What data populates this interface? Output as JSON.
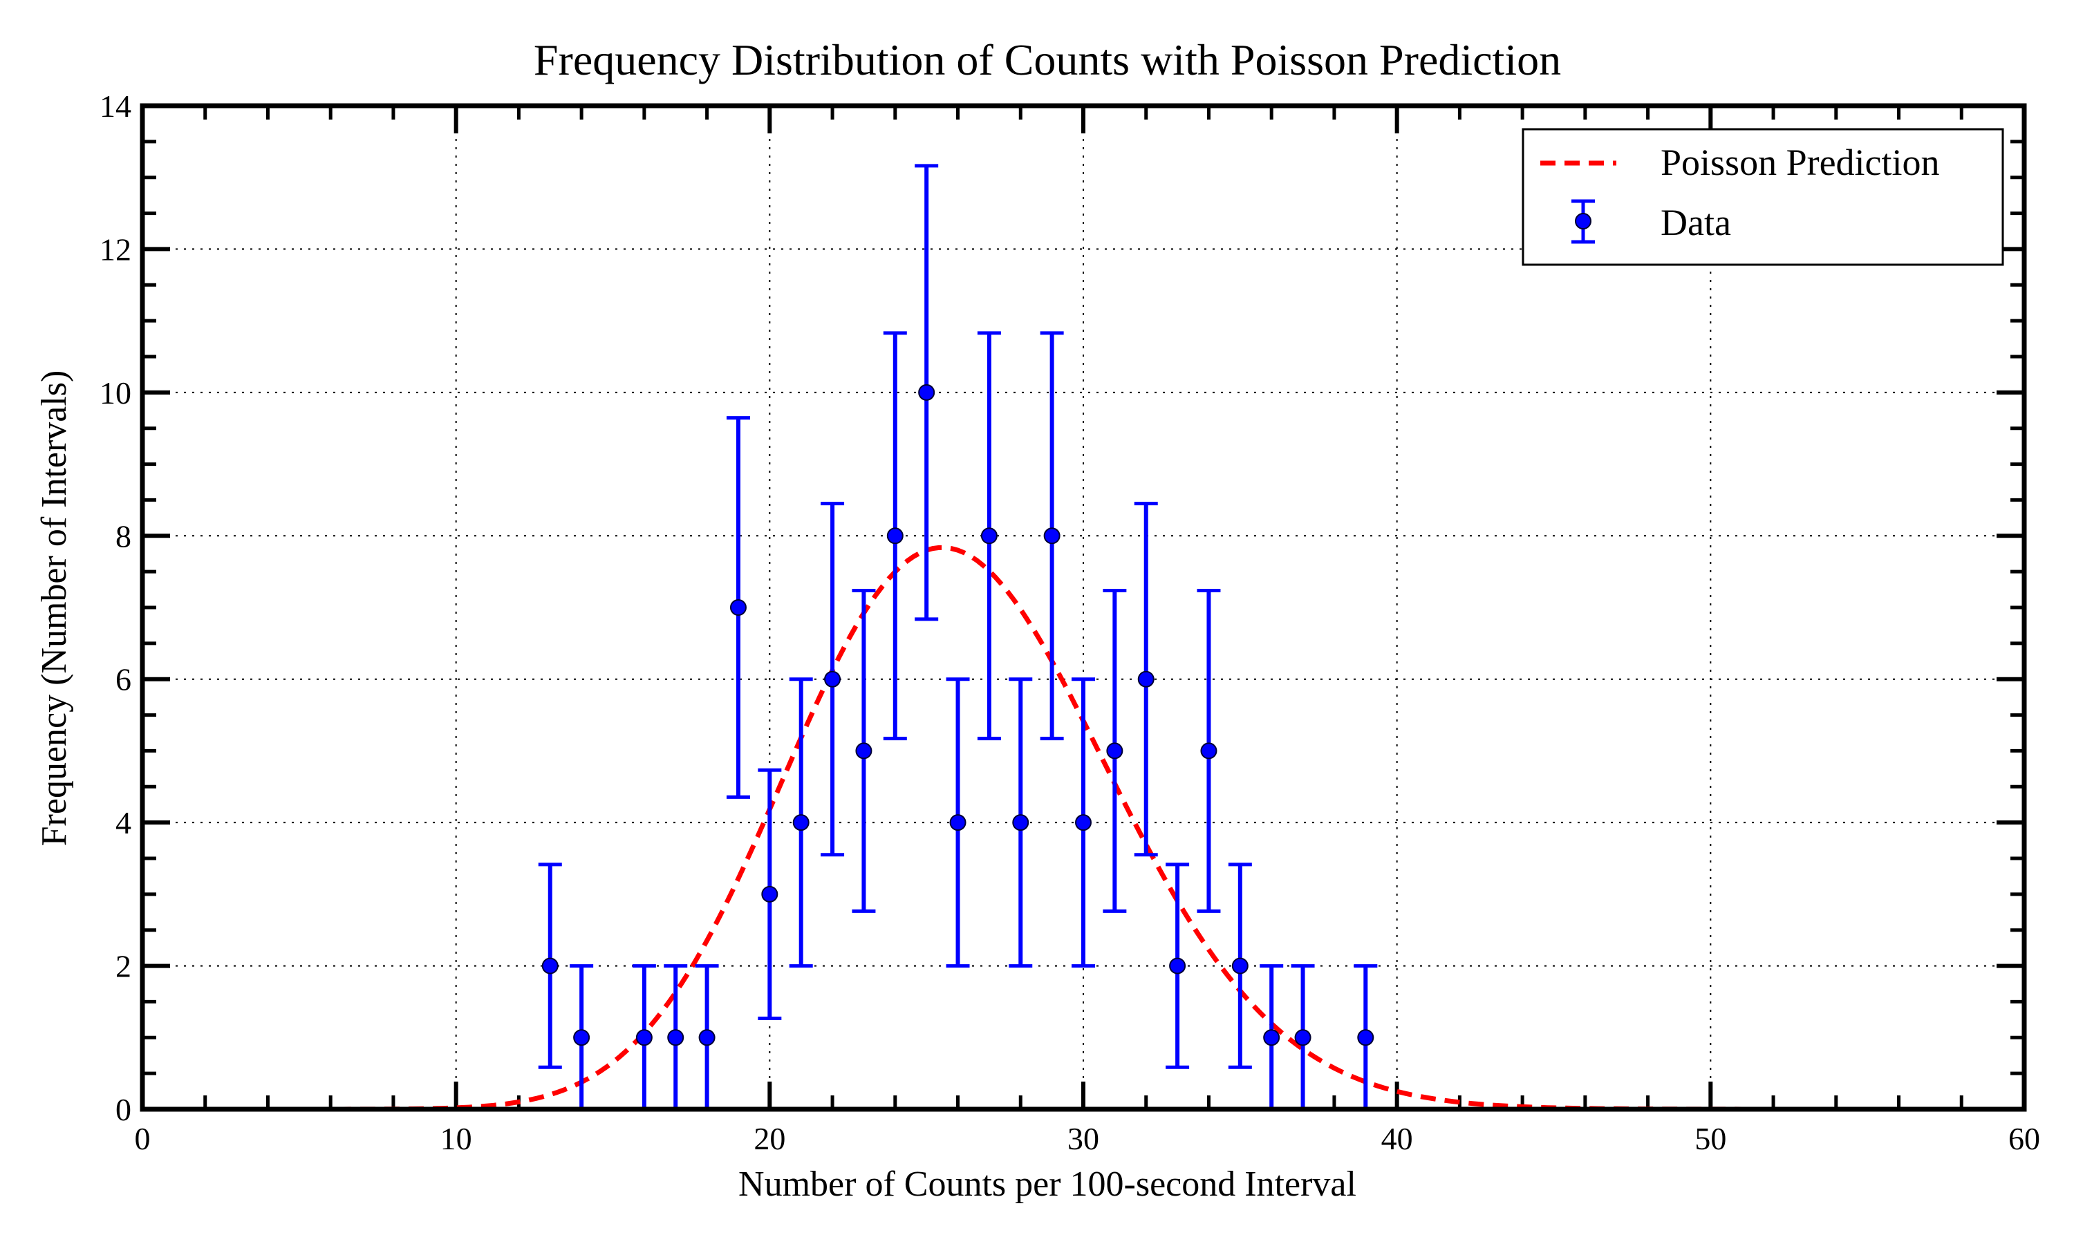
{
  "chart_data": {
    "type": "scatter",
    "title": "Frequency Distribution of Counts with Poisson Prediction",
    "xlabel": "Number of Counts per 100-second Interval",
    "ylabel": "Frequency (Number of Intervals)",
    "xlim": [
      0,
      60
    ],
    "ylim": [
      0,
      14
    ],
    "xticks": [
      0,
      10,
      20,
      30,
      40,
      50,
      60
    ],
    "yticks": [
      0,
      2,
      4,
      6,
      8,
      10,
      12,
      14
    ],
    "grid": true,
    "legend_position": "top-right",
    "series": [
      {
        "name": "Poisson Prediction",
        "kind": "line",
        "style": "dashed",
        "color": "#ff0000",
        "model": "poisson",
        "mean": 26,
        "total_intervals": 100
      },
      {
        "name": "Data",
        "kind": "errorbar",
        "color": "#0000ff",
        "x": [
          13,
          14,
          16,
          17,
          18,
          19,
          20,
          21,
          22,
          23,
          24,
          25,
          26,
          27,
          28,
          29,
          30,
          31,
          32,
          33,
          34,
          35,
          36,
          37,
          39
        ],
        "y": [
          2,
          1,
          1,
          1,
          1,
          7,
          3,
          4,
          6,
          5,
          8,
          10,
          4,
          8,
          4,
          8,
          4,
          5,
          6,
          2,
          5,
          2,
          1,
          1,
          1
        ],
        "yerr": "sqrt(y)"
      }
    ]
  }
}
